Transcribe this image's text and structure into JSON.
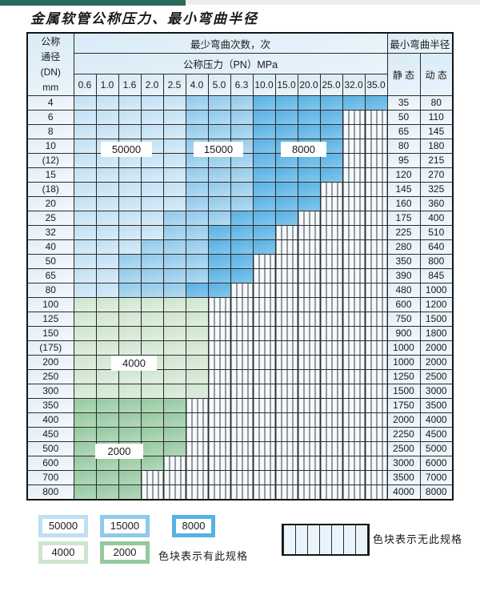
{
  "title": "金属软管公称压力、最小弯曲半径",
  "colors": {
    "top_bar_teal": "#2a6a5d",
    "blue_50000": "#bedff4",
    "blue_15000": "#8fc9ea",
    "blue_8000": "#58b1e3",
    "green_4000": "#cde5ce",
    "green_2000": "#94c99f",
    "grid_line": "#2b2b2b"
  },
  "table_header": {
    "dn_lines": "公称\n通径\n(DN)\nmm",
    "bend_times_label": "最少弯曲次数，次",
    "pressure_label": "公称压力（PN）MPa",
    "radius_label": "最小弯曲半径",
    "static_label": "静 态",
    "dynamic_label": "动 态"
  },
  "chart_data": {
    "type": "table",
    "title": "金属软管公称压力、最小弯曲半径",
    "pressure_columns": [
      "0.6",
      "1.0",
      "1.6",
      "2.0",
      "2.5",
      "4.0",
      "5.0",
      "6.3",
      "10.0",
      "15.0",
      "20.0",
      "25.0",
      "32.0",
      "35.0"
    ],
    "zone_codes": {
      "L": 50000,
      "M": 15000,
      "D": 8000,
      "g": 4000,
      "G": 2000,
      "x": null
    },
    "rows": [
      {
        "dn": "4",
        "zones": "LLLLLMMMDDDDDD",
        "static": "35",
        "dynamic": "80"
      },
      {
        "dn": "6",
        "zones": "LLLLLMMMDDDDxx",
        "static": "50",
        "dynamic": "110"
      },
      {
        "dn": "8",
        "zones": "LLLLLMMMDDDDxx",
        "static": "65",
        "dynamic": "145"
      },
      {
        "dn": "10",
        "zones": "LLLLLMMMDDDDxx",
        "static": "80",
        "dynamic": "180"
      },
      {
        "dn": "(12)",
        "zones": "LLLLLMMMDDDDxx",
        "static": "95",
        "dynamic": "215"
      },
      {
        "dn": "15",
        "zones": "LLLLLMMMDDDDxx",
        "static": "120",
        "dynamic": "270"
      },
      {
        "dn": "(18)",
        "zones": "LLLLLMMMDDDxxx",
        "static": "145",
        "dynamic": "325"
      },
      {
        "dn": "20",
        "zones": "LLLLLMMMDDDxxx",
        "static": "160",
        "dynamic": "360"
      },
      {
        "dn": "25",
        "zones": "LLLLMMMDDDxxxx",
        "static": "175",
        "dynamic": "400"
      },
      {
        "dn": "32",
        "zones": "LLLLMMDDDxxxxx",
        "static": "225",
        "dynamic": "510"
      },
      {
        "dn": "40",
        "zones": "LLLMMMDDDxxxxx",
        "static": "280",
        "dynamic": "640"
      },
      {
        "dn": "50",
        "zones": "LLMMMMDDxxxxxx",
        "static": "350",
        "dynamic": "800"
      },
      {
        "dn": "65",
        "zones": "LLMMMMDDxxxxxx",
        "static": "390",
        "dynamic": "845"
      },
      {
        "dn": "80",
        "zones": "LLMMMDDxxxxxxx",
        "static": "480",
        "dynamic": "1000"
      },
      {
        "dn": "100",
        "zones": "ggggggxxxxxxxx",
        "static": "600",
        "dynamic": "1200"
      },
      {
        "dn": "125",
        "zones": "ggggggxxxxxxxx",
        "static": "750",
        "dynamic": "1500"
      },
      {
        "dn": "150",
        "zones": "ggggggxxxxxxxx",
        "static": "900",
        "dynamic": "1800"
      },
      {
        "dn": "(175)",
        "zones": "ggggggxxxxxxxx",
        "static": "1000",
        "dynamic": "2000"
      },
      {
        "dn": "200",
        "zones": "ggggggxxxxxxxx",
        "static": "1000",
        "dynamic": "2000"
      },
      {
        "dn": "250",
        "zones": "ggggggxxxxxxxx",
        "static": "1250",
        "dynamic": "2500"
      },
      {
        "dn": "300",
        "zones": "ggggggxxxxxxxx",
        "static": "1500",
        "dynamic": "3000"
      },
      {
        "dn": "350",
        "zones": "GGGGGxxxxxxxxx",
        "static": "1750",
        "dynamic": "3500"
      },
      {
        "dn": "400",
        "zones": "GGGGGxxxxxxxxx",
        "static": "2000",
        "dynamic": "4000"
      },
      {
        "dn": "450",
        "zones": "GGGGGxxxxxxxxx",
        "static": "2250",
        "dynamic": "4500"
      },
      {
        "dn": "500",
        "zones": "GGGGGxxxxxxxxx",
        "static": "2500",
        "dynamic": "5000"
      },
      {
        "dn": "600",
        "zones": "GGGGxxxxxxxxxx",
        "static": "3000",
        "dynamic": "6000"
      },
      {
        "dn": "700",
        "zones": "GGGxxxxxxxxxxx",
        "static": "3500",
        "dynamic": "7000"
      },
      {
        "dn": "800",
        "zones": "GGGxxxxxxxxxxx",
        "static": "4000",
        "dynamic": "8000"
      }
    ]
  },
  "overlays": {
    "label_50000": "50000",
    "label_15000": "15000",
    "label_8000": "8000",
    "label_4000": "4000",
    "label_2000": "2000"
  },
  "legend": {
    "swatches": [
      {
        "label": "50000",
        "key": "L",
        "row": 0,
        "col": 0
      },
      {
        "label": "15000",
        "key": "M",
        "row": 0,
        "col": 1
      },
      {
        "label": "8000",
        "key": "D",
        "row": 0,
        "col": 2
      },
      {
        "label": "4000",
        "key": "g",
        "row": 1,
        "col": 0
      },
      {
        "label": "2000",
        "key": "G",
        "row": 1,
        "col": 1
      }
    ],
    "has_spec_text": "色块表示有此规格",
    "no_spec_text": "色块表示无此规格"
  }
}
